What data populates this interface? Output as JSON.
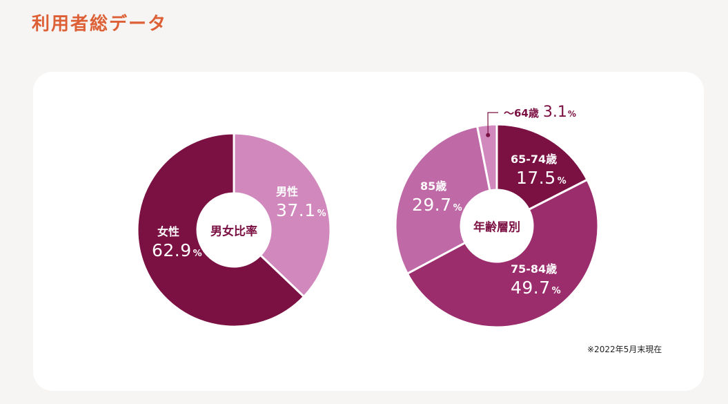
{
  "title": "利用者総データ",
  "footnote": "※2022年5月末現在",
  "chart_data": [
    {
      "type": "pie",
      "center_label": "男女比率",
      "categories": [
        "男性",
        "女性"
      ],
      "values": [
        37.1,
        62.9
      ],
      "values_text": [
        "37.1",
        "62.9"
      ],
      "unit": "%",
      "colors": [
        "#d189bd",
        "#7b1042"
      ]
    },
    {
      "type": "pie",
      "center_label": "年齢層別",
      "categories": [
        "65-74歳",
        "75-84歳",
        "85歳",
        "～64歳"
      ],
      "values": [
        17.5,
        49.7,
        29.7,
        3.1
      ],
      "values_text": [
        "17.5",
        "49.7",
        "29.7",
        "3.1"
      ],
      "unit": "%",
      "colors": [
        "#7b1042",
        "#9c2d6d",
        "#bf6aa7",
        "#d189bd"
      ]
    }
  ]
}
